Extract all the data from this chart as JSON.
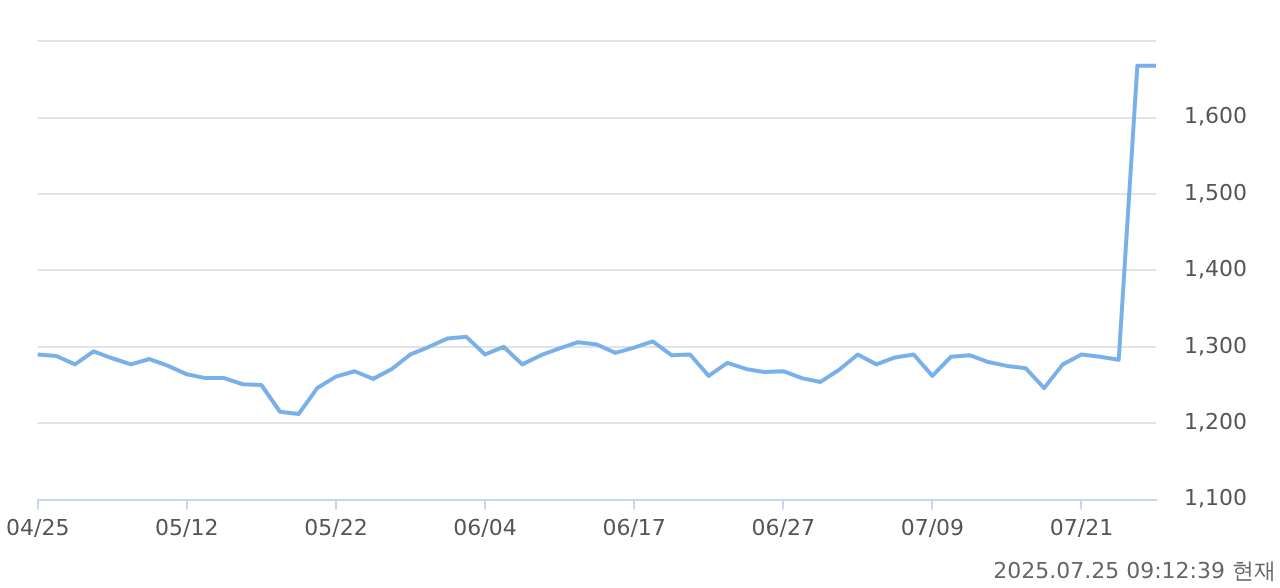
{
  "chart_data": {
    "type": "line",
    "categories": [
      "04/25",
      null,
      null,
      null,
      null,
      null,
      null,
      null,
      "05/12",
      null,
      null,
      null,
      null,
      null,
      null,
      null,
      "05/22",
      null,
      null,
      null,
      null,
      null,
      null,
      null,
      "06/04",
      null,
      null,
      null,
      null,
      null,
      null,
      null,
      "06/17",
      null,
      null,
      null,
      null,
      null,
      null,
      null,
      "06/27",
      null,
      null,
      null,
      null,
      null,
      null,
      null,
      "07/09",
      null,
      null,
      null,
      null,
      null,
      null,
      null,
      "07/21",
      null,
      null,
      null,
      null
    ],
    "series": [
      {
        "color": "#7ab0ea",
        "values": [
          1290,
          1288,
          1277,
          1294,
          1285,
          1277,
          1284,
          1275,
          1264,
          1259,
          1259,
          1251,
          1250,
          1215,
          1212,
          1246,
          1261,
          1268,
          1258,
          1271,
          1290,
          1300,
          1311,
          1313,
          1290,
          1300,
          1277,
          1289,
          1298,
          1306,
          1303,
          1292,
          1299,
          1307,
          1289,
          1290,
          1262,
          1279,
          1271,
          1267,
          1268,
          1259,
          1254,
          1270,
          1290,
          1277,
          1286,
          1290,
          1262,
          1287,
          1289,
          1280,
          1275,
          1272,
          1246,
          1277,
          1290,
          1287,
          1283,
          1668,
          1668
        ]
      }
    ],
    "ylim": [
      1100,
      1700
    ],
    "yticks": [
      {
        "value": 1100,
        "label": "1,100"
      },
      {
        "value": 1200,
        "label": "1,200"
      },
      {
        "value": 1300,
        "label": "1,300"
      },
      {
        "value": 1400,
        "label": "1,400"
      },
      {
        "value": 1500,
        "label": "1,500"
      },
      {
        "value": 1600,
        "label": "1,600"
      },
      {
        "value": 1700,
        "label": null
      }
    ],
    "grid": "y",
    "marker": "none",
    "line_style": "solid",
    "legend": false,
    "annotations": [
      "2025.07.25 09:12:39 현재"
    ]
  }
}
